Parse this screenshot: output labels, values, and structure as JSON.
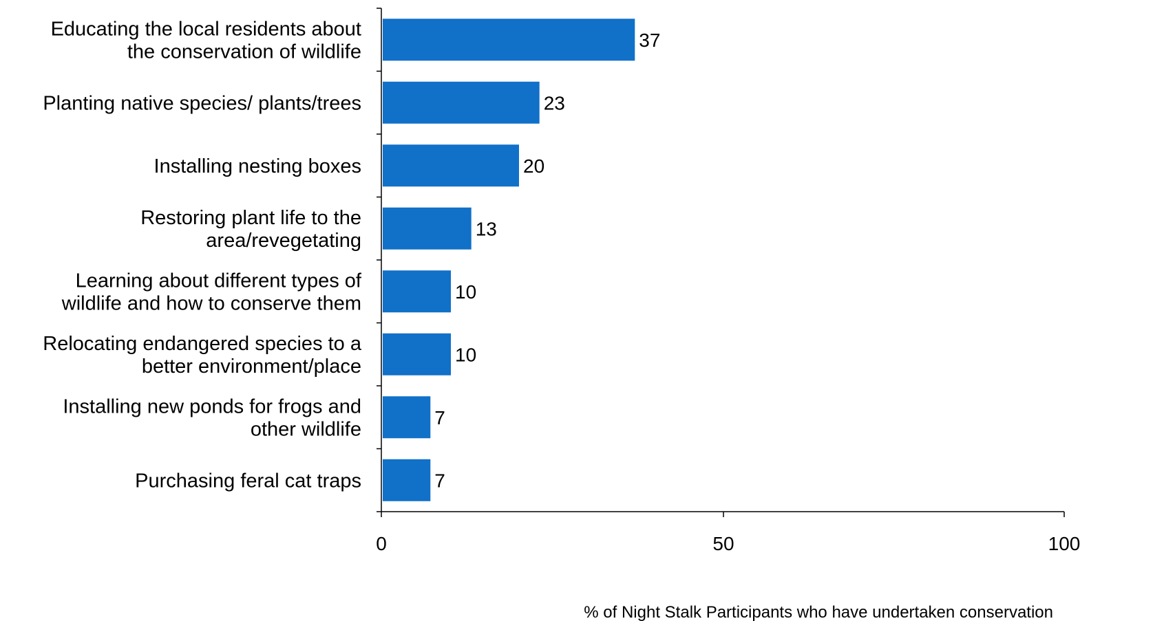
{
  "chart_data": {
    "type": "bar",
    "orientation": "horizontal",
    "categories": [
      [
        "Educating the local residents about",
        "the conservation of wildlife"
      ],
      [
        "Planting native species/ plants/trees"
      ],
      [
        "Installing nesting boxes"
      ],
      [
        "Restoring plant life to the",
        "area/revegetating"
      ],
      [
        "Learning about different types of",
        "wildlife and how to conserve them"
      ],
      [
        "Relocating endangered species to a",
        "better environment/place"
      ],
      [
        "Installing new ponds for frogs and",
        "other wildlife"
      ],
      [
        "Purchasing feral cat traps"
      ]
    ],
    "values": [
      37,
      23,
      20,
      13,
      10,
      10,
      7,
      7
    ],
    "xlim": [
      0,
      100
    ],
    "xticks": [
      0,
      50,
      100
    ],
    "xlabel": "% of Night Stalk Participants who have undertaken conservation",
    "bar_color": "#1170C8",
    "grid": false
  }
}
